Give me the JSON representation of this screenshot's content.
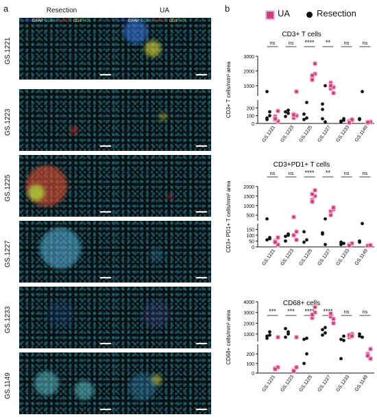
{
  "panel_a": {
    "letter": "a",
    "col_headers": [
      "Resection",
      "UA"
    ],
    "stain_legend": [
      {
        "text": "DAPI",
        "color": "#3b4cc0"
      },
      {
        "text": "GFAP",
        "color": "#ffffff"
      },
      {
        "text": "CD68",
        "color": "#41b6c4"
      },
      {
        "text": "HLA-DR",
        "color": "#e0322b"
      },
      {
        "text": "CD3",
        "color": "#f2e34a"
      },
      {
        "text": "PD1",
        "color": "#3fbf3f"
      }
    ],
    "row_labels": [
      "GS.1221",
      "GS.1223",
      "GS.1225",
      "GS.1227",
      "GS.1233",
      "GS.1149"
    ]
  },
  "panel_b": {
    "letter": "b",
    "legend": [
      {
        "label": "UA",
        "marker": "square",
        "color": "#cc3d7d"
      },
      {
        "label": "Resection",
        "marker": "circle",
        "color": "#111111"
      }
    ]
  },
  "colors": {
    "ua": "#cc3d7d",
    "ua_halo": "#f2b8d1",
    "resection": "#111111"
  },
  "chart_data": [
    {
      "type": "scatter",
      "title": "CD3+ T cells",
      "ylabel": "CD3+ T cells/mm² area",
      "categories": [
        "GS.1221",
        "GS.1223",
        "GS.1225",
        "GS.1227",
        "GS.1233",
        "GS.1149"
      ],
      "axis_break": {
        "lower_range": [
          0,
          300
        ],
        "upper_range": [
          300,
          3000
        ]
      },
      "yticks_lower": [
        0,
        100,
        200
      ],
      "yticks_upper": [
        1000,
        2000,
        3000
      ],
      "significance": [
        "ns",
        "ns",
        "****",
        "**",
        "ns",
        "ns"
      ],
      "series": [
        {
          "name": "Resection",
          "values": [
            [
              70,
              150,
              600,
              100,
              50
            ],
            [
              150,
              170,
              90,
              130
            ],
            [
              120,
              70,
              50,
              270
            ],
            [
              180,
              1000,
              60,
              20,
              250
            ],
            [
              20,
              60,
              30,
              40
            ],
            [
              50,
              600,
              60
            ]
          ]
        },
        {
          "name": "UA",
          "values": [
            [
              90,
              30,
              50,
              160,
              60
            ],
            [
              120,
              600,
              70,
              100,
              110
            ],
            [
              1500,
              1800,
              1400,
              2500,
              1700
            ],
            [
              1200,
              500,
              800,
              900,
              1000
            ],
            [
              20,
              40,
              30,
              50,
              10
            ],
            [
              10,
              20,
              15
            ]
          ]
        }
      ]
    },
    {
      "type": "scatter",
      "title": "CD3+PD1+ T cells",
      "ylabel": "CD3+ PD1+ T cells/mm² area",
      "categories": [
        "GS.1221",
        "GS.1223",
        "GS.1225",
        "GS.1227",
        "GS.1233",
        "GS.1149"
      ],
      "axis_break": {
        "lower_range": [
          0,
          200
        ],
        "upper_range": [
          200,
          2000
        ]
      },
      "yticks_lower": [
        0,
        50,
        100,
        150
      ],
      "yticks_upper": [
        500,
        1000,
        1500,
        2000
      ],
      "significance": [
        "ns",
        "ns",
        "****",
        "**",
        "ns",
        "ns"
      ],
      "series": [
        {
          "name": "Resection",
          "values": [
            [
              60,
              70,
              300,
              80
            ],
            [
              90,
              100,
              50,
              110
            ],
            [
              130,
              60,
              40
            ],
            [
              110,
              20,
              120,
              300
            ],
            [
              20,
              30,
              40
            ],
            [
              50,
              200,
              40
            ]
          ]
        },
        {
          "name": "UA",
          "values": [
            [
              50,
              20,
              40,
              80
            ],
            [
              100,
              130,
              400,
              60
            ],
            [
              1300,
              1500,
              1200,
              1800,
              1600
            ],
            [
              700,
              800,
              500,
              900
            ],
            [
              20,
              30,
              10
            ],
            [
              10,
              15
            ]
          ]
        }
      ]
    },
    {
      "type": "scatter",
      "title": "CD68+ cells",
      "ylabel": "CD68+ cells/mm² area",
      "categories": [
        "GS.1221",
        "GS.1223",
        "GS.1225",
        "GS.1227",
        "GS.1233",
        "GS.1149"
      ],
      "axis_break": {
        "lower_range": [
          0,
          300
        ],
        "upper_range": [
          300,
          4000
        ]
      },
      "yticks_lower": [
        0,
        100,
        200
      ],
      "yticks_upper": [
        1000,
        2000,
        3000,
        4000
      ],
      "significance": [
        "***",
        "***",
        "****",
        "****",
        "ns",
        "ns"
      ],
      "series": [
        {
          "name": "Resection",
          "values": [
            [
              800,
              1200,
              600,
              900
            ],
            [
              1500,
              1000,
              700,
              1200
            ],
            [
              500,
              200,
              100,
              600
            ],
            [
              1400,
              1600,
              900,
              1100
            ],
            [
              500,
              800,
              150,
              400
            ],
            [
              1000,
              700,
              800
            ]
          ]
        },
        {
          "name": "UA",
          "values": [
            [
              50,
              60,
              40,
              700
            ],
            [
              30,
              60,
              20,
              700
            ],
            [
              2500,
              3000,
              2800,
              3500
            ],
            [
              2600,
              2000,
              2900,
              2400
            ],
            [
              700,
              1000,
              900,
              800
            ],
            [
              200,
              150,
              180,
              250
            ]
          ]
        }
      ]
    }
  ]
}
